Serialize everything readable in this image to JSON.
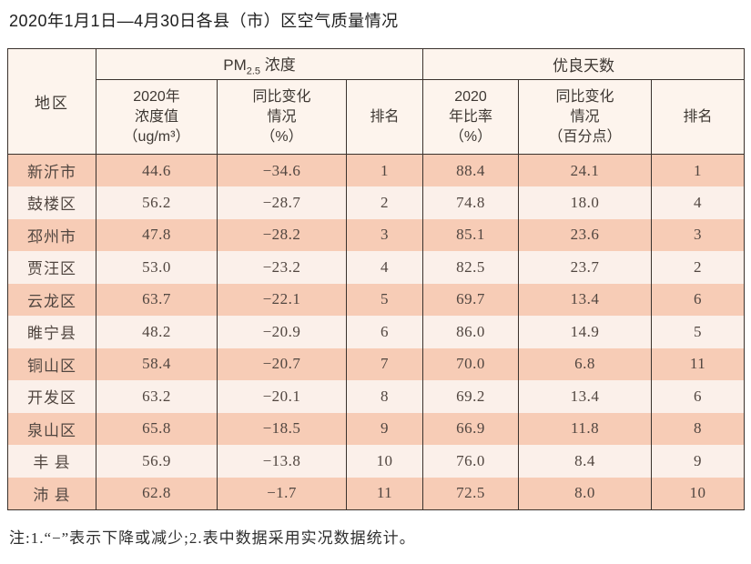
{
  "page": {
    "title": "2020年1月1日—4月30日各县（市）区空气质量情况",
    "footnote": "注:1.“−”表示下降或减少;2.表中数据采用实况数据统计。"
  },
  "colors": {
    "row_dark": "#f7ccb6",
    "row_light": "#fbf0ea",
    "header_bg": "#fdf4ed",
    "border": "#3a322d"
  },
  "table": {
    "headers": {
      "region": "地区",
      "pm_group_prefix": "PM",
      "pm_group_sub": "2.5",
      "pm_group_suffix": " 浓度",
      "good_days_group": "优良天数",
      "pm_value": "2020年\n浓度值\n（ug/m³）",
      "pm_change": "同比变化\n情况\n（%）",
      "pm_rank": "排名",
      "good_ratio": "2020\n年比率\n（%）",
      "good_change": "同比变化\n情况\n（百分点）",
      "good_rank": "排名"
    },
    "rows": [
      {
        "region": "新沂市",
        "pm_value": "44.6",
        "pm_change": "−34.6",
        "pm_rank": "1",
        "good_ratio": "88.4",
        "good_change": "24.1",
        "good_rank": "1"
      },
      {
        "region": "鼓楼区",
        "pm_value": "56.2",
        "pm_change": "−28.7",
        "pm_rank": "2",
        "good_ratio": "74.8",
        "good_change": "18.0",
        "good_rank": "4"
      },
      {
        "region": "邳州市",
        "pm_value": "47.8",
        "pm_change": "−28.2",
        "pm_rank": "3",
        "good_ratio": "85.1",
        "good_change": "23.6",
        "good_rank": "3"
      },
      {
        "region": "贾汪区",
        "pm_value": "53.0",
        "pm_change": "−23.2",
        "pm_rank": "4",
        "good_ratio": "82.5",
        "good_change": "23.7",
        "good_rank": "2"
      },
      {
        "region": "云龙区",
        "pm_value": "63.7",
        "pm_change": "−22.1",
        "pm_rank": "5",
        "good_ratio": "69.7",
        "good_change": "13.4",
        "good_rank": "6"
      },
      {
        "region": "睢宁县",
        "pm_value": "48.2",
        "pm_change": "−20.9",
        "pm_rank": "6",
        "good_ratio": "86.0",
        "good_change": "14.9",
        "good_rank": "5"
      },
      {
        "region": "铜山区",
        "pm_value": "58.4",
        "pm_change": "−20.7",
        "pm_rank": "7",
        "good_ratio": "70.0",
        "good_change": "6.8",
        "good_rank": "11"
      },
      {
        "region": "开发区",
        "pm_value": "63.2",
        "pm_change": "−20.1",
        "pm_rank": "8",
        "good_ratio": "69.2",
        "good_change": "13.4",
        "good_rank": "6"
      },
      {
        "region": "泉山区",
        "pm_value": "65.8",
        "pm_change": "−18.5",
        "pm_rank": "9",
        "good_ratio": "66.9",
        "good_change": "11.8",
        "good_rank": "8"
      },
      {
        "region": "丰 县",
        "pm_value": "56.9",
        "pm_change": "−13.8",
        "pm_rank": "10",
        "good_ratio": "76.0",
        "good_change": "8.4",
        "good_rank": "9"
      },
      {
        "region": "沛 县",
        "pm_value": "62.8",
        "pm_change": "−1.7",
        "pm_rank": "11",
        "good_ratio": "72.5",
        "good_change": "8.0",
        "good_rank": "10"
      }
    ]
  }
}
